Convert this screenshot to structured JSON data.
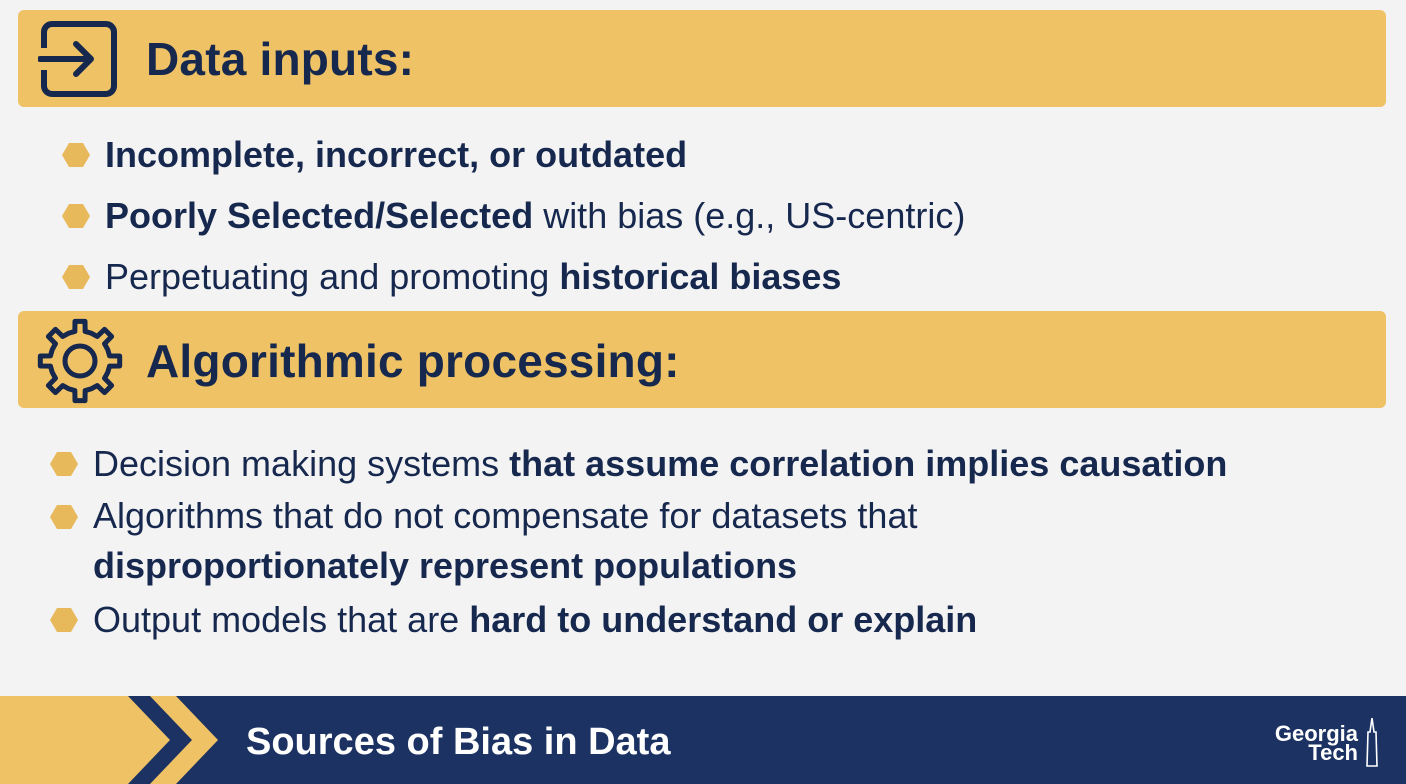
{
  "sections": [
    {
      "title": "Data inputs:",
      "icon": "sign-in-icon",
      "bullets": [
        [
          {
            "t": "Incomplete, incorrect, or outdated",
            "b": true
          }
        ],
        [
          {
            "t": "Poorly Selected/Selected",
            "b": true
          },
          {
            "t": " with bias (e.g., US-centric)",
            "b": false
          }
        ],
        [
          {
            "t": "Perpetuating and promoting ",
            "b": false
          },
          {
            "t": "historical biases",
            "b": true
          }
        ]
      ]
    },
    {
      "title": "Algorithmic processing:",
      "icon": "gear-icon",
      "bullets": [
        [
          {
            "t": "Decision making systems ",
            "b": false
          },
          {
            "t": "that assume correlation implies causation",
            "b": true
          }
        ],
        [
          {
            "t": "Algorithms that do not compensate for datasets that ",
            "b": false
          },
          {
            "t": "disproportionately represent populations",
            "b": true
          }
        ],
        [
          {
            "t": "Output models that are ",
            "b": false
          },
          {
            "t": "hard to understand or explain",
            "b": true
          }
        ]
      ]
    }
  ],
  "footer": {
    "title": "Sources of Bias in Data",
    "logo_line1": "Georgia",
    "logo_line2": "Tech"
  },
  "colors": {
    "band": "#eec265",
    "navy": "#16284d",
    "bullet": "#e7b95a",
    "footer": "#1b3263"
  }
}
